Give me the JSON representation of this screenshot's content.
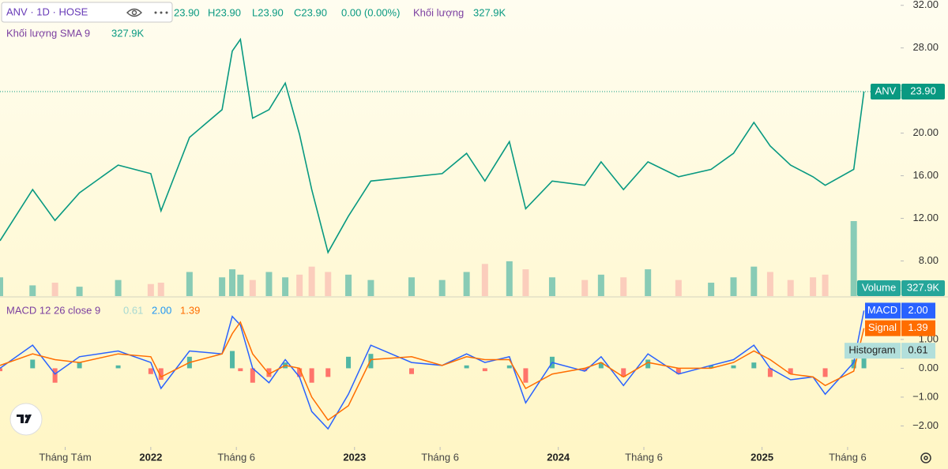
{
  "chart_data": [
    {
      "type": "line",
      "title": "ANV · 1D · HOSE",
      "ohlc": [
        "23.90",
        "H23.90",
        "L23.90",
        "C23.90",
        "0.00 (0.00%)"
      ],
      "volume_title": "Khối lượng",
      "volume_value": "327.9K",
      "sma_title": "Khối lượng SMA 9",
      "sma_value": "327.9K",
      "price_badge": {
        "name": "ANV",
        "value": "23.90"
      },
      "volume_badge": {
        "name": "Volume",
        "value": "327.9K"
      },
      "x": [
        2021.26,
        2021.42,
        2021.53,
        2021.65,
        2021.84,
        2022.0,
        2022.05,
        2022.19,
        2022.35,
        2022.4,
        2022.44,
        2022.5,
        2022.58,
        2022.66,
        2022.73,
        2022.79,
        2022.87,
        2022.97,
        2023.08,
        2023.28,
        2023.43,
        2023.55,
        2023.64,
        2023.76,
        2023.84,
        2023.97,
        2024.13,
        2024.21,
        2024.32,
        2024.44,
        2024.59,
        2024.75,
        2024.86,
        2024.96,
        2025.04,
        2025.14,
        2025.25,
        2025.31,
        2025.45,
        2025.5
      ],
      "xlim": [
        2021.26,
        2025.68
      ],
      "xticks": [
        {
          "value": 2021.58,
          "label": "Tháng Tám"
        },
        {
          "value": 2022,
          "label": "2022"
        },
        {
          "value": 2022.42,
          "label": "Tháng 6"
        },
        {
          "value": 2023,
          "label": "2023"
        },
        {
          "value": 2023.42,
          "label": "Tháng 6"
        },
        {
          "value": 2024,
          "label": "2024"
        },
        {
          "value": 2024.42,
          "label": "Tháng 6"
        },
        {
          "value": 2025,
          "label": "2025"
        },
        {
          "value": 2025.42,
          "label": "Tháng 6"
        }
      ],
      "ylim": [
        4.7,
        32.5
      ],
      "yticks": [
        {
          "value": 32,
          "label": "32.00"
        },
        {
          "value": 28,
          "label": "28.00"
        },
        {
          "value": 24,
          "label": "24.00"
        },
        {
          "value": 20,
          "label": "20.00"
        },
        {
          "value": 16,
          "label": "16.00"
        },
        {
          "value": 12,
          "label": "12.00"
        },
        {
          "value": 8,
          "label": "8.00"
        }
      ],
      "series": [
        {
          "name": "ANV",
          "color": "#089981",
          "values": [
            9.9,
            14.7,
            11.8,
            14.4,
            17.0,
            16.2,
            12.7,
            19.6,
            22.2,
            27.7,
            28.8,
            21.4,
            22.2,
            24.7,
            19.9,
            14.7,
            8.8,
            12.2,
            15.5,
            15.9,
            16.2,
            18.1,
            15.5,
            19.2,
            12.9,
            15.5,
            15.1,
            17.3,
            14.7,
            17.3,
            15.9,
            16.6,
            18.1,
            21.0,
            18.8,
            17.0,
            15.9,
            15.1,
            16.6,
            23.9
          ]
        },
        {
          "name": "Volume",
          "color": "#26a69a",
          "down_color": "#f7a9a7",
          "values": [
            700,
            400,
            500,
            350,
            600,
            450,
            500,
            900,
            700,
            1000,
            800,
            600,
            900,
            700,
            800,
            1100,
            900,
            800,
            600,
            700,
            600,
            900,
            1200,
            1300,
            1000,
            700,
            600,
            800,
            700,
            1000,
            600,
            500,
            700,
            1100,
            900,
            600,
            700,
            800,
            2800,
            327.9
          ]
        }
      ]
    },
    {
      "type": "line",
      "title": "MACD 12 26 close 9",
      "legend_values": [
        "0.61",
        "2.00",
        "1.39"
      ],
      "ylim": [
        -2.7,
        2.45
      ],
      "yticks": [
        {
          "value": 1,
          "label": "1.00"
        },
        {
          "value": 0,
          "label": "0.00"
        },
        {
          "value": -1,
          "label": "−1.00"
        },
        {
          "value": -2,
          "label": "−2.00"
        }
      ],
      "series": [
        {
          "name": "Histogram",
          "color": "#26a69a",
          "down_color": "#ff5252",
          "values": [
            -0.1,
            0.3,
            -0.5,
            0.2,
            0.1,
            -0.2,
            -0.4,
            0.4,
            0.0,
            0.6,
            -0.1,
            -0.5,
            -0.3,
            0.2,
            -0.3,
            -0.5,
            -0.3,
            0.4,
            0.5,
            -0.2,
            0.0,
            0.1,
            -0.1,
            0.1,
            -0.5,
            0.4,
            -0.1,
            0.2,
            -0.3,
            0.3,
            -0.2,
            0.1,
            0.1,
            0.2,
            -0.3,
            -0.2,
            0.0,
            -0.3,
            0.3,
            0.61
          ]
        },
        {
          "name": "MACD",
          "color": "#2962ff",
          "values": [
            0.0,
            0.8,
            -0.2,
            0.4,
            0.6,
            0.2,
            -0.7,
            0.6,
            0.5,
            1.8,
            1.5,
            0.0,
            -0.5,
            0.3,
            -0.3,
            -1.5,
            -2.1,
            -0.9,
            0.8,
            0.2,
            0.1,
            0.5,
            0.2,
            0.4,
            -1.2,
            0.2,
            -0.1,
            0.4,
            -0.6,
            0.5,
            -0.2,
            0.1,
            0.3,
            0.8,
            0.0,
            -0.4,
            -0.3,
            -0.9,
            0.2,
            2.0
          ]
        },
        {
          "name": "Signal",
          "color": "#ff6d00",
          "values": [
            0.1,
            0.5,
            0.3,
            0.2,
            0.5,
            0.4,
            -0.3,
            0.2,
            0.5,
            1.2,
            1.6,
            0.5,
            -0.2,
            0.1,
            0.0,
            -1.0,
            -1.8,
            -1.3,
            0.3,
            0.4,
            0.1,
            0.4,
            0.3,
            0.3,
            -0.7,
            -0.2,
            0.0,
            0.2,
            -0.3,
            0.2,
            0.0,
            0.0,
            0.2,
            0.6,
            0.3,
            -0.2,
            -0.3,
            -0.6,
            -0.1,
            1.39
          ]
        }
      ]
    }
  ]
}
